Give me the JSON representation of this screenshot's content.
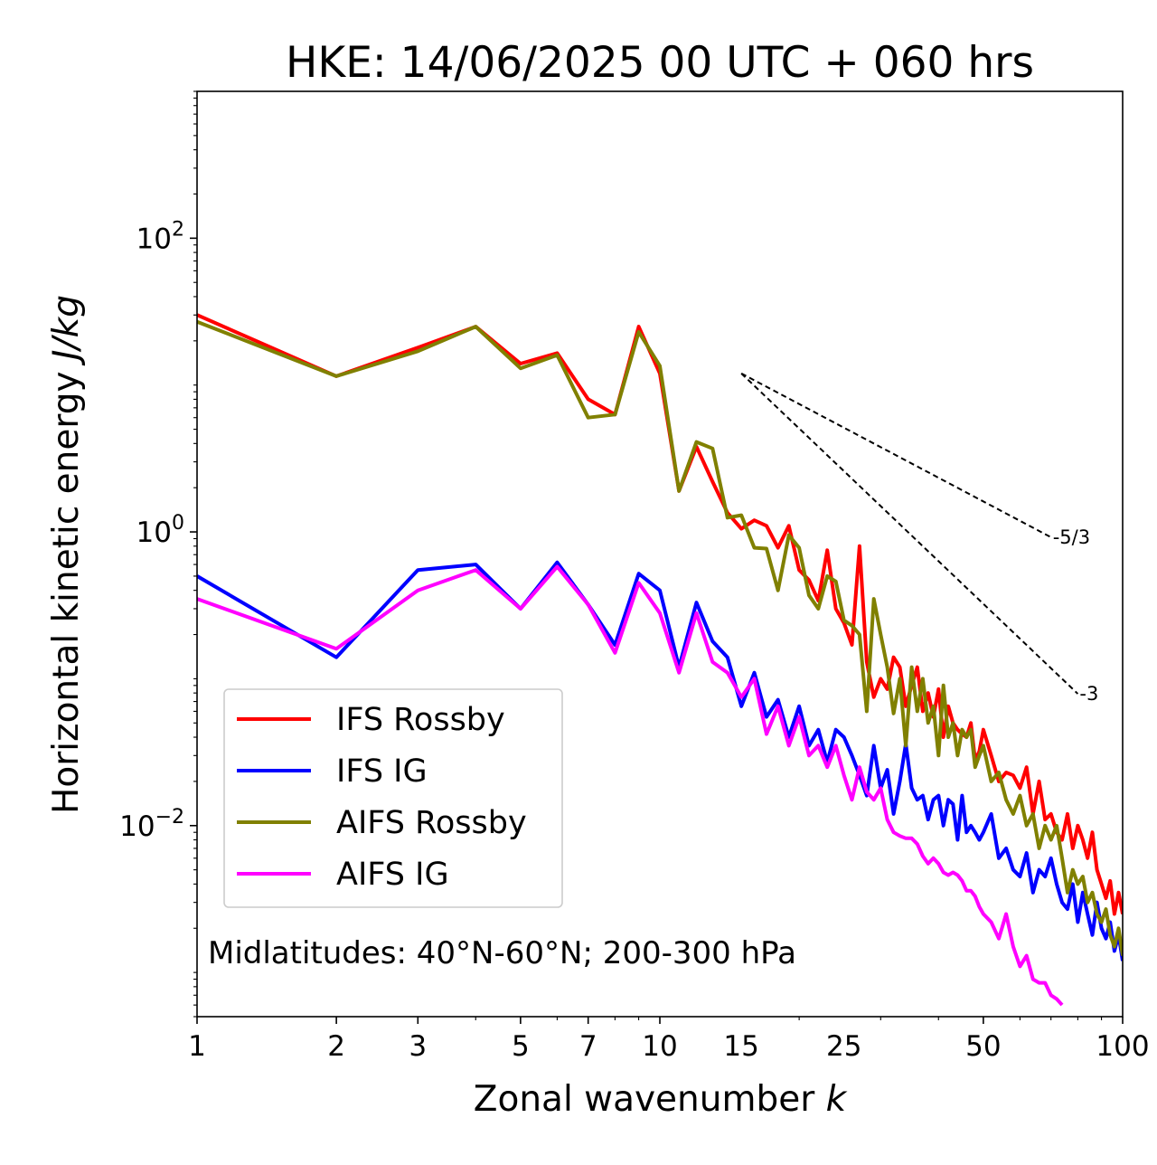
{
  "chart_data": {
    "type": "line",
    "title": "HKE: 14/06/2025 00 UTC + 060 hrs",
    "xlabel": "Zonal wavenumber k",
    "xlabel_parts": [
      "Zonal wavenumber ",
      "k"
    ],
    "ylabel": "Horizontal kinetic energy J/kg",
    "ylabel_parts": [
      "Horizontal kinetic energy ",
      "J/kg"
    ],
    "xscale": "log",
    "yscale": "log",
    "xlim": [
      1,
      100
    ],
    "ylim": [
      0.0005,
      1000
    ],
    "xticks": [
      1,
      2,
      3,
      5,
      7,
      10,
      15,
      25,
      50,
      100
    ],
    "xtick_labels": [
      "1",
      "2",
      "3",
      "5",
      "7",
      "10",
      "15",
      "25",
      "50",
      "100"
    ],
    "yticks": [
      100,
      1,
      0.01
    ],
    "ytick_labels": [
      {
        "base": "10",
        "exp": "2"
      },
      {
        "base": "10",
        "exp": "0"
      },
      {
        "base": "10",
        "exp": "−2"
      }
    ],
    "annotation": "Midlatitudes: 40°N-60°N; 200-300 hPa",
    "legend_position": "lower-left",
    "reference_lines": [
      {
        "label": "-5/3",
        "slope": -1.6667,
        "x": [
          15,
          70
        ],
        "y": [
          12.0,
          0.92
        ]
      },
      {
        "label": "-3",
        "slope": -3,
        "x": [
          15,
          80
        ],
        "y": [
          12.0,
          0.079
        ]
      }
    ],
    "series": [
      {
        "name": "IFS Rossby",
        "color": "#ff0000",
        "x": [
          1,
          2,
          3,
          4,
          5,
          6,
          7,
          8,
          9,
          10,
          11,
          12,
          13,
          14,
          15,
          16,
          17,
          18,
          19,
          20,
          21,
          22,
          23,
          24,
          25,
          26,
          27,
          28,
          29,
          30,
          31,
          32,
          33,
          34,
          35,
          36,
          37,
          38,
          39,
          40,
          41,
          42,
          43,
          44,
          45,
          46,
          47,
          48,
          49,
          50,
          52,
          54,
          56,
          58,
          60,
          62,
          64,
          66,
          68,
          70,
          72,
          74,
          76,
          78,
          80,
          82,
          84,
          86,
          88,
          90,
          92,
          94,
          96,
          98,
          100
        ],
        "y": [
          30,
          11.5,
          18,
          25,
          14,
          16.5,
          8,
          6.3,
          25,
          12,
          1.9,
          3.8,
          2.2,
          1.35,
          1.05,
          1.2,
          1.1,
          0.78,
          1.1,
          0.55,
          0.47,
          0.34,
          0.75,
          0.3,
          0.24,
          0.17,
          0.8,
          0.13,
          0.075,
          0.1,
          0.085,
          0.14,
          0.12,
          0.065,
          0.09,
          0.12,
          0.06,
          0.08,
          0.055,
          0.085,
          0.04,
          0.065,
          0.05,
          0.045,
          0.042,
          0.04,
          0.05,
          0.028,
          0.032,
          0.045,
          0.03,
          0.02,
          0.023,
          0.022,
          0.018,
          0.025,
          0.012,
          0.02,
          0.011,
          0.012,
          0.009,
          0.008,
          0.012,
          0.007,
          0.01,
          0.008,
          0.006,
          0.009,
          0.005,
          0.004,
          0.0032,
          0.0042,
          0.0025,
          0.0035,
          0.0025
        ]
      },
      {
        "name": "IFS IG",
        "color": "#0000ff",
        "x": [
          1,
          2,
          3,
          4,
          5,
          6,
          7,
          8,
          9,
          10,
          11,
          12,
          13,
          14,
          15,
          16,
          17,
          18,
          19,
          20,
          21,
          22,
          23,
          24,
          25,
          26,
          27,
          28,
          29,
          30,
          31,
          32,
          33,
          34,
          35,
          36,
          37,
          38,
          39,
          40,
          41,
          42,
          43,
          44,
          45,
          46,
          47,
          48,
          49,
          50,
          52,
          54,
          56,
          58,
          60,
          62,
          64,
          66,
          68,
          70,
          72,
          74,
          76,
          78,
          80,
          82,
          84,
          86,
          88,
          90,
          92,
          94,
          96,
          98,
          100
        ],
        "y": [
          0.5,
          0.14,
          0.55,
          0.6,
          0.3,
          0.62,
          0.32,
          0.17,
          0.52,
          0.4,
          0.12,
          0.33,
          0.18,
          0.14,
          0.065,
          0.11,
          0.055,
          0.072,
          0.04,
          0.065,
          0.035,
          0.045,
          0.027,
          0.045,
          0.04,
          0.03,
          0.022,
          0.016,
          0.035,
          0.018,
          0.024,
          0.012,
          0.02,
          0.036,
          0.018,
          0.015,
          0.016,
          0.011,
          0.015,
          0.016,
          0.01,
          0.015,
          0.014,
          0.008,
          0.016,
          0.009,
          0.01,
          0.009,
          0.008,
          0.009,
          0.012,
          0.006,
          0.007,
          0.005,
          0.0045,
          0.0065,
          0.0035,
          0.005,
          0.0045,
          0.006,
          0.004,
          0.003,
          0.0027,
          0.004,
          0.0022,
          0.0035,
          0.0025,
          0.0018,
          0.003,
          0.002,
          0.0017,
          0.0022,
          0.0014,
          0.0018,
          0.0012
        ]
      },
      {
        "name": "AIFS Rossby",
        "color": "#808000",
        "x": [
          1,
          2,
          3,
          4,
          5,
          6,
          7,
          8,
          9,
          10,
          11,
          12,
          13,
          14,
          15,
          16,
          17,
          18,
          19,
          20,
          21,
          22,
          23,
          24,
          25,
          26,
          27,
          28,
          29,
          30,
          31,
          32,
          33,
          34,
          35,
          36,
          37,
          38,
          39,
          40,
          41,
          42,
          43,
          44,
          45,
          46,
          47,
          48,
          49,
          50,
          52,
          54,
          56,
          58,
          60,
          62,
          64,
          66,
          68,
          70,
          72,
          74,
          76,
          78,
          80,
          82,
          84,
          86,
          88,
          90,
          92,
          94,
          96,
          98,
          100
        ],
        "y": [
          27,
          11.5,
          17,
          25,
          13,
          16,
          6,
          6.3,
          23,
          13.5,
          1.9,
          4.1,
          3.7,
          1.25,
          1.3,
          0.78,
          0.77,
          0.4,
          0.95,
          0.78,
          0.37,
          0.3,
          0.5,
          0.46,
          0.25,
          0.23,
          0.2,
          0.06,
          0.35,
          0.2,
          0.12,
          0.058,
          0.1,
          0.035,
          0.12,
          0.06,
          0.1,
          0.05,
          0.065,
          0.03,
          0.09,
          0.04,
          0.05,
          0.03,
          0.045,
          0.04,
          0.045,
          0.025,
          0.03,
          0.035,
          0.02,
          0.023,
          0.015,
          0.012,
          0.016,
          0.01,
          0.012,
          0.007,
          0.01,
          0.008,
          0.01,
          0.006,
          0.0035,
          0.005,
          0.004,
          0.0045,
          0.003,
          0.0035,
          0.0025,
          0.0022,
          0.0027,
          0.0018,
          0.0015,
          0.002,
          0.0013
        ]
      },
      {
        "name": "AIFS IG",
        "color": "#ff00ff",
        "x": [
          1,
          2,
          3,
          4,
          5,
          6,
          7,
          8,
          9,
          10,
          11,
          12,
          13,
          14,
          15,
          16,
          17,
          18,
          19,
          20,
          21,
          22,
          23,
          24,
          25,
          26,
          27,
          28,
          29,
          30,
          31,
          32,
          33,
          34,
          35,
          36,
          37,
          38,
          39,
          40,
          41,
          42,
          43,
          44,
          45,
          46,
          47,
          48,
          49,
          50,
          52,
          54,
          56,
          58,
          60,
          62,
          64,
          66,
          68,
          70,
          72,
          74
        ],
        "y": [
          0.35,
          0.16,
          0.4,
          0.55,
          0.3,
          0.58,
          0.32,
          0.15,
          0.45,
          0.28,
          0.11,
          0.28,
          0.13,
          0.11,
          0.075,
          0.1,
          0.042,
          0.065,
          0.035,
          0.055,
          0.03,
          0.035,
          0.025,
          0.035,
          0.022,
          0.015,
          0.025,
          0.017,
          0.015,
          0.018,
          0.011,
          0.009,
          0.0085,
          0.0082,
          0.0082,
          0.0075,
          0.0062,
          0.0055,
          0.006,
          0.0055,
          0.0048,
          0.0046,
          0.0048,
          0.0046,
          0.0042,
          0.0036,
          0.0036,
          0.0033,
          0.0028,
          0.0025,
          0.0022,
          0.0017,
          0.0025,
          0.0015,
          0.0011,
          0.0013,
          0.0009,
          0.00085,
          0.00085,
          0.0007,
          0.00066,
          0.0006
        ]
      }
    ]
  }
}
